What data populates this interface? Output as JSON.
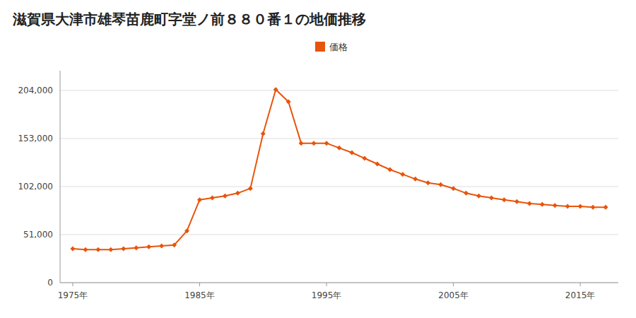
{
  "chart_data": {
    "type": "line",
    "title": "滋賀県大津市雄琴苗鹿町字堂ノ前８８０番１の地価推移",
    "x": [
      1975,
      1976,
      1977,
      1978,
      1979,
      1980,
      1981,
      1982,
      1983,
      1984,
      1985,
      1986,
      1987,
      1988,
      1989,
      1990,
      1991,
      1992,
      1993,
      1994,
      1995,
      1996,
      1997,
      1998,
      1999,
      2000,
      2001,
      2002,
      2003,
      2004,
      2005,
      2006,
      2007,
      2008,
      2009,
      2010,
      2011,
      2012,
      2013,
      2014,
      2015,
      2016,
      2017
    ],
    "series": [
      {
        "name": "価格",
        "color": "#E8540A",
        "marker": "diamond",
        "values": [
          36000,
          35000,
          35000,
          35000,
          36000,
          37000,
          38000,
          39000,
          40000,
          55000,
          88000,
          90000,
          92000,
          95000,
          100000,
          158000,
          205000,
          192000,
          148000,
          148000,
          148000,
          143000,
          138000,
          132000,
          126000,
          120000,
          115000,
          110000,
          106000,
          104000,
          100000,
          95000,
          92000,
          90000,
          88000,
          86000,
          84000,
          83000,
          82000,
          81000,
          81000,
          80000,
          80000
        ]
      }
    ],
    "xlim": [
      1974,
      2018
    ],
    "xticks": [
      {
        "value": 1975,
        "label": "1975年"
      },
      {
        "value": 1985,
        "label": "1985年"
      },
      {
        "value": 1995,
        "label": "1995年"
      },
      {
        "value": 2005,
        "label": "2005年"
      },
      {
        "value": 2015,
        "label": "2015年"
      }
    ],
    "ylim": [
      0,
      225000
    ],
    "yticks": [
      0,
      {
        "value": 51000,
        "label": "51,000"
      },
      {
        "value": 102000,
        "label": "102,000"
      },
      {
        "value": 153000,
        "label": "153,000"
      },
      {
        "value": 204000,
        "label": "204,000"
      }
    ],
    "grid": true,
    "legend": "top"
  }
}
